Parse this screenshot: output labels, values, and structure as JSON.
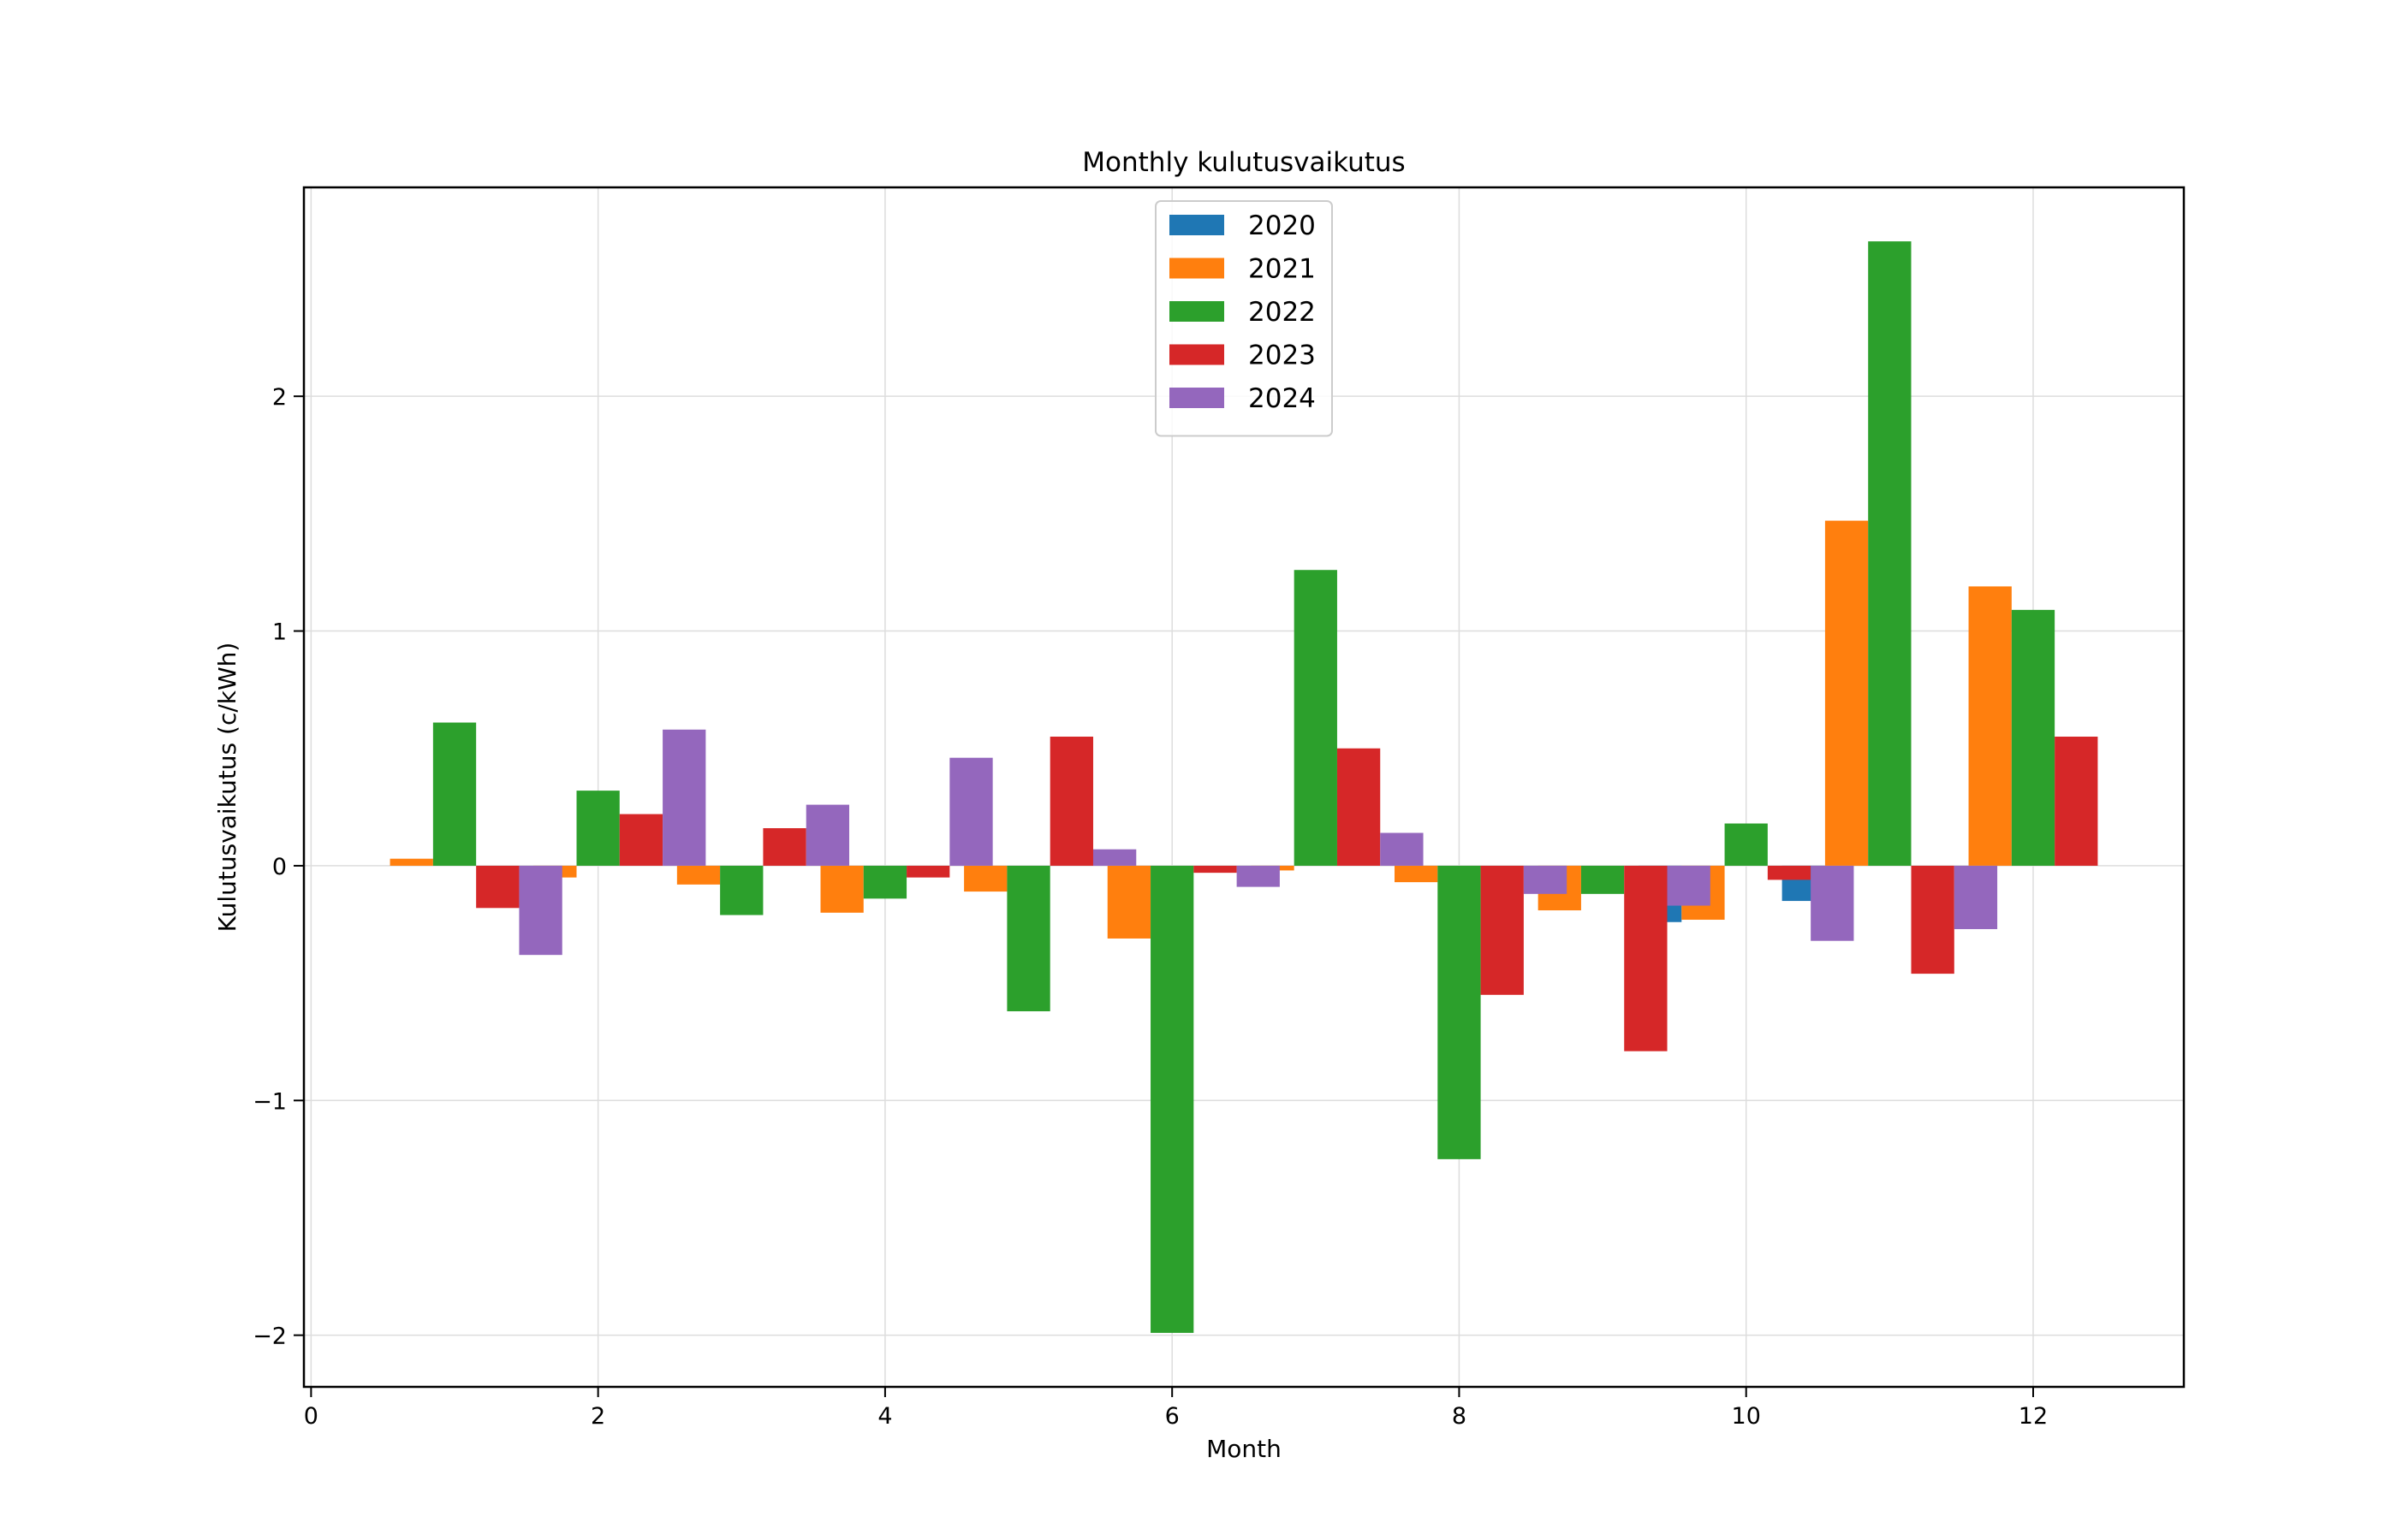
{
  "chart_data": {
    "type": "bar",
    "title": "Monthly kulutusvaikutus",
    "xlabel": "Month",
    "ylabel": "Kulutusvaikutus (c/kWh)",
    "xlim": [
      -0.05,
      13.05
    ],
    "ylim": [
      -2.22,
      2.89
    ],
    "x_ticks": [
      0,
      2,
      4,
      6,
      8,
      10,
      12
    ],
    "y_ticks": [
      -2,
      -1,
      0,
      1,
      2
    ],
    "y_tick_labels": [
      "−2",
      "−1",
      "0",
      "1",
      "2"
    ],
    "grid": true,
    "legend_position": "top-center",
    "categories": [
      1,
      2,
      3,
      4,
      5,
      6,
      7,
      8,
      9,
      10,
      11,
      12
    ],
    "series": [
      {
        "name": "2020",
        "color": "#1f77b4",
        "values": [
          0,
          0,
          0,
          0,
          0,
          0,
          0,
          0,
          0,
          -0.24,
          -0.15,
          0
        ]
      },
      {
        "name": "2021",
        "color": "#ff7f0e",
        "values": [
          0.03,
          -0.05,
          -0.08,
          -0.2,
          -0.11,
          -0.31,
          -0.02,
          -0.07,
          -0.19,
          -0.23,
          1.47,
          1.19
        ]
      },
      {
        "name": "2022",
        "color": "#2ca02c",
        "values": [
          0.61,
          0.32,
          -0.21,
          -0.14,
          -0.62,
          -1.99,
          1.26,
          -1.25,
          -0.12,
          0.18,
          2.66,
          1.09
        ]
      },
      {
        "name": "2023",
        "color": "#d62728",
        "values": [
          -0.18,
          0.22,
          0.16,
          -0.05,
          0.55,
          -0.03,
          0.5,
          -0.55,
          -0.79,
          -0.06,
          -0.46,
          0.55
        ]
      },
      {
        "name": "2024",
        "color": "#9467bd",
        "values": [
          -0.38,
          0.58,
          0.26,
          0.46,
          0.07,
          -0.09,
          0.14,
          -0.12,
          -0.17,
          -0.32,
          -0.27,
          0
        ]
      }
    ]
  }
}
